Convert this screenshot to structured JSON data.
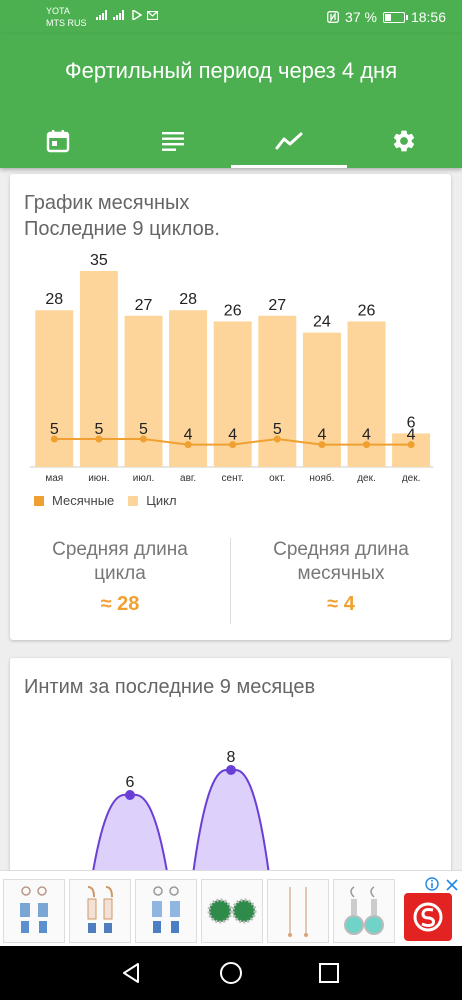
{
  "status": {
    "carrier_line1": "YOTA",
    "carrier_line2": "MTS RUS",
    "battery_pct": "37 %",
    "battery_level": 0.37,
    "time": "18:56"
  },
  "appbar": {
    "title": "Фертильный период через 4 дня",
    "tabs": [
      {
        "icon": "calendar-icon"
      },
      {
        "icon": "list-icon"
      },
      {
        "icon": "chart-icon"
      },
      {
        "icon": "gear-icon"
      }
    ],
    "active_tab": 2
  },
  "cycle_card": {
    "title_line1": "График месячных",
    "title_line2": "Последние 9 циклов.",
    "legend_period": "Месячные",
    "legend_cycle": "Цикл",
    "avg_cycle_label": "Средняя длина цикла",
    "avg_cycle_value": "≈ 28",
    "avg_period_label": "Средняя длина месячных",
    "avg_period_value": "≈ 4"
  },
  "intimacy_card": {
    "title": "Интим за последние 9 месяцев"
  },
  "colors": {
    "primary": "#4caf50",
    "bar": "#fdd59a",
    "line": "#f0a030",
    "accent": "#f0a030",
    "intim_fill": "#ddd0fa",
    "intim_line": "#6a3fd6"
  },
  "chart_data": [
    {
      "type": "bar",
      "categories": [
        "мая",
        "июн.",
        "июл.",
        "авг.",
        "сент.",
        "окт.",
        "нояб.",
        "дек.",
        "дек."
      ],
      "series": [
        {
          "name": "Цикл",
          "values": [
            28,
            35,
            27,
            28,
            26,
            27,
            24,
            26,
            6
          ]
        },
        {
          "name": "Месячные",
          "values": [
            5,
            5,
            5,
            4,
            4,
            5,
            4,
            4,
            4
          ]
        }
      ],
      "ylim": [
        0,
        40
      ],
      "legend": "bottom-left",
      "grid": false
    },
    {
      "type": "area",
      "series": [
        {
          "values": [
            6,
            8
          ]
        }
      ]
    }
  ]
}
